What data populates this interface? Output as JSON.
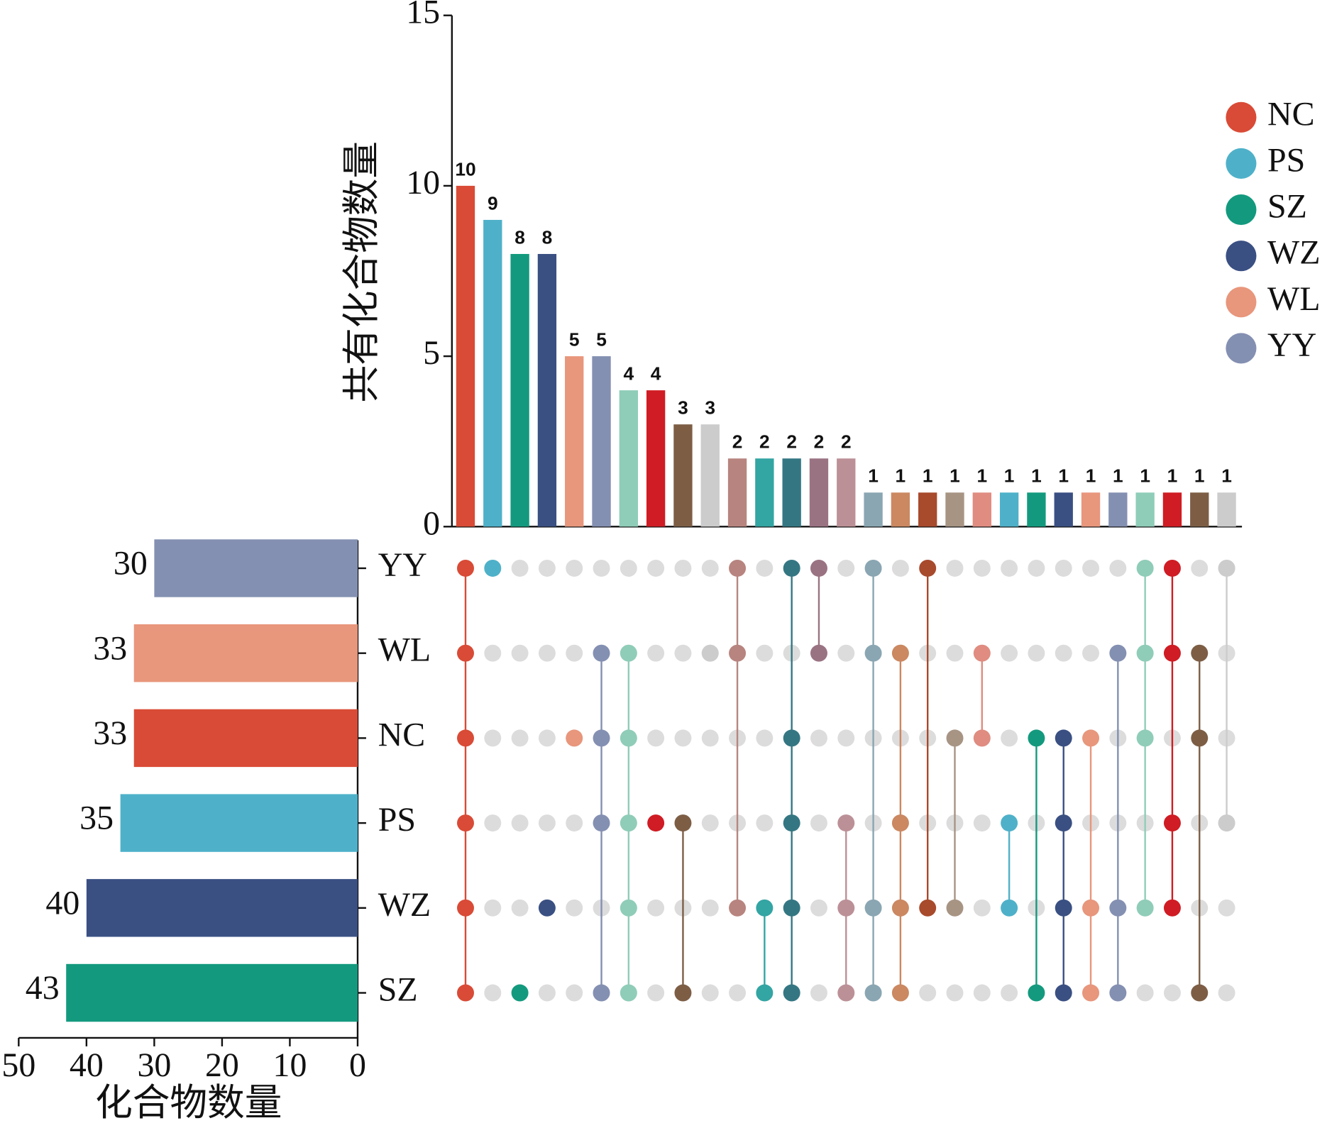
{
  "chart_data": {
    "type": "upset",
    "ylabel": "共有化合物数量",
    "ylim": [
      0,
      15
    ],
    "yticks": [
      0,
      5,
      10,
      15
    ],
    "inactive_color": "#dcdcdc",
    "intersections": {
      "values": [
        10,
        9,
        8,
        8,
        5,
        5,
        4,
        4,
        3,
        3,
        2,
        2,
        2,
        2,
        2,
        1,
        1,
        1,
        1,
        1,
        1,
        1,
        1,
        1,
        1,
        1,
        1,
        1,
        1
      ],
      "colors": [
        "#d94b36",
        "#4eb1c9",
        "#139a7e",
        "#3a5083",
        "#e8967c",
        "#8490b2",
        "#8fcdb8",
        "#d01c24",
        "#7d5e45",
        "#cccccc",
        "#b8847f",
        "#33a5a3",
        "#347783",
        "#9a7383",
        "#bc9097",
        "#8aa6b3",
        "#cb8861",
        "#a84a2c",
        "#a79483",
        "#e08c80",
        "#4eb1c9",
        "#139a7e",
        "#3a5083",
        "#e8967c",
        "#8490b2",
        "#8fcdb8",
        "#d01c24",
        "#7d5e45",
        "#cccccc"
      ],
      "members": [
        [
          "YY",
          "WL",
          "NC",
          "PS",
          "WZ",
          "SZ"
        ],
        [
          "YY"
        ],
        [
          "SZ"
        ],
        [
          "WZ"
        ],
        [
          "NC"
        ],
        [
          "WL",
          "NC",
          "PS",
          "SZ"
        ],
        [
          "WL",
          "NC",
          "PS",
          "WZ",
          "SZ"
        ],
        [
          "PS"
        ],
        [
          "PS",
          "SZ"
        ],
        [
          "WL"
        ],
        [
          "YY",
          "WL",
          "WZ"
        ],
        [
          "WZ",
          "SZ"
        ],
        [
          "YY",
          "NC",
          "PS",
          "WZ",
          "SZ"
        ],
        [
          "YY",
          "WL"
        ],
        [
          "PS",
          "WZ",
          "SZ"
        ],
        [
          "YY",
          "WL",
          "WZ",
          "SZ"
        ],
        [
          "WL",
          "PS",
          "WZ",
          "SZ"
        ],
        [
          "YY",
          "WZ"
        ],
        [
          "NC",
          "WZ"
        ],
        [
          "WL",
          "NC"
        ],
        [
          "PS",
          "WZ"
        ],
        [
          "NC",
          "SZ"
        ],
        [
          "NC",
          "PS",
          "WZ",
          "SZ"
        ],
        [
          "NC",
          "WZ",
          "SZ"
        ],
        [
          "WL",
          "WZ",
          "SZ"
        ],
        [
          "YY",
          "WL",
          "NC",
          "WZ"
        ],
        [
          "YY",
          "WL",
          "PS",
          "WZ"
        ],
        [
          "WL",
          "NC",
          "SZ"
        ],
        [
          "YY",
          "PS"
        ]
      ]
    },
    "sets": {
      "names": [
        "YY",
        "WL",
        "NC",
        "PS",
        "WZ",
        "SZ"
      ],
      "colors": [
        "#8490b2",
        "#e8967c",
        "#d94b36",
        "#4eb1c9",
        "#3a5083",
        "#139a7e"
      ],
      "values": [
        30,
        33,
        33,
        35,
        40,
        43
      ],
      "xlim": [
        50,
        0
      ],
      "xticks": [
        50,
        40,
        30,
        20,
        10,
        0
      ],
      "xlabel": "化合物数量"
    },
    "legend": {
      "position": "right",
      "names": [
        "NC",
        "PS",
        "SZ",
        "WZ",
        "WL",
        "YY"
      ],
      "colors": [
        "#d94b36",
        "#4eb1c9",
        "#139a7e",
        "#3a5083",
        "#e8967c",
        "#8490b2"
      ]
    }
  }
}
